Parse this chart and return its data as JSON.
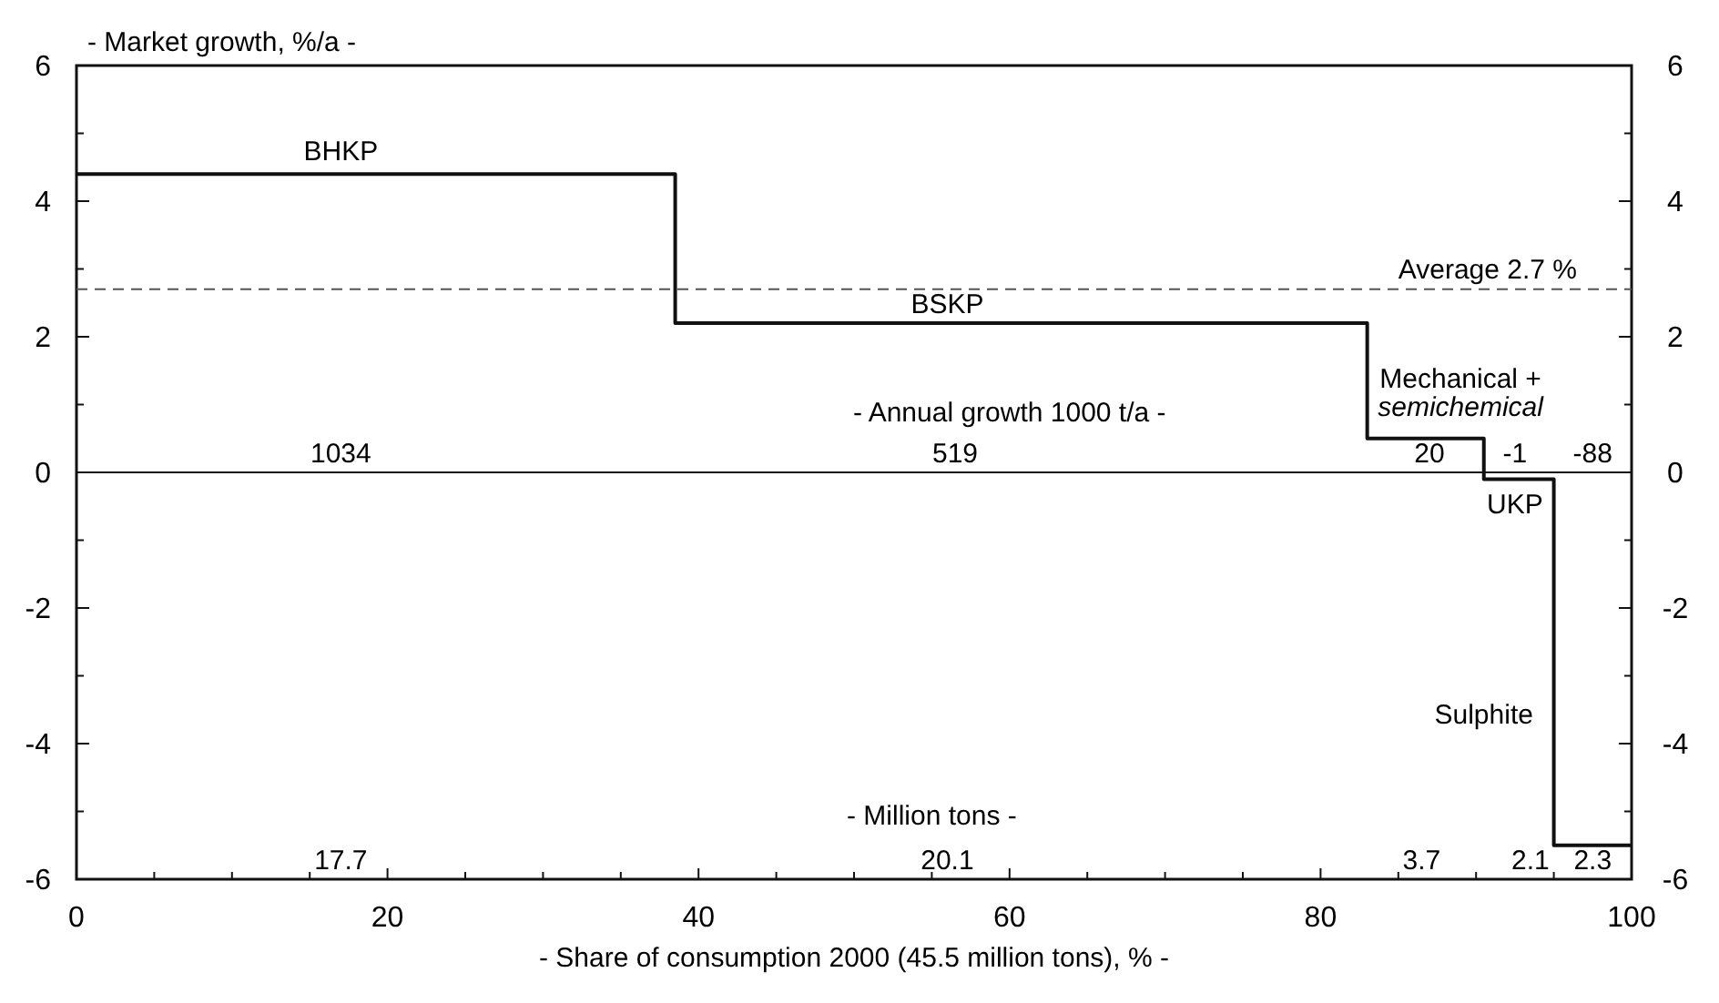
{
  "chart_data": {
    "type": "step",
    "ylabel": "- Market growth, %/a -",
    "xlabel": "- Share of consumption 2000 (45.5 million tons), % -",
    "series": [
      {
        "color": "#111111",
        "x": [
          0,
          38.5,
          83,
          90.5,
          95,
          100
        ],
        "values": [
          4.4,
          2.2,
          0.5,
          -0.1,
          -5.5,
          -5.5
        ]
      }
    ],
    "xlim": [
      0,
      100
    ],
    "xticks": [
      0,
      {
        "value": 5,
        "label": null
      },
      {
        "value": 10,
        "label": null
      },
      {
        "value": 15,
        "label": null
      },
      20,
      {
        "value": 25,
        "label": null
      },
      {
        "value": 30,
        "label": null
      },
      {
        "value": 35,
        "label": null
      },
      40,
      {
        "value": 45,
        "label": null
      },
      {
        "value": 50,
        "label": null
      },
      {
        "value": 55,
        "label": null
      },
      60,
      {
        "value": 65,
        "label": null
      },
      {
        "value": 70,
        "label": null
      },
      {
        "value": 75,
        "label": null
      },
      80,
      {
        "value": 85,
        "label": null
      },
      {
        "value": 90,
        "label": null
      },
      {
        "value": 95,
        "label": null
      },
      100
    ],
    "ylim": [
      -6,
      6
    ],
    "yticks": [
      -6,
      {
        "value": -5,
        "label": null
      },
      -4,
      {
        "value": -3,
        "label": null
      },
      -2,
      {
        "value": -1,
        "label": null
      },
      0,
      {
        "value": 1,
        "label": null
      },
      2,
      {
        "value": 3,
        "label": null
      },
      4,
      {
        "value": 5,
        "label": null
      },
      6
    ],
    "y2lim": [
      -6,
      6
    ],
    "y2ticks": [
      -6,
      {
        "value": -5,
        "label": null
      },
      -4,
      {
        "value": -3,
        "label": null
      },
      -2,
      {
        "value": -1,
        "label": null
      },
      0,
      {
        "value": 1,
        "label": null
      },
      2,
      {
        "value": 3,
        "label": null
      },
      4,
      {
        "value": 5,
        "label": null
      },
      6
    ],
    "ref_lines": [
      {
        "axis": "y",
        "value": 2.7,
        "label": "Average 2.7 %",
        "line_style": "dashed",
        "color": "#555555"
      }
    ],
    "annotations": [
      "BHKP",
      "1034",
      "BSKP",
      "- Annual growth 1000 t/a -",
      "519",
      "Mechanical +\nsemichemical",
      "20",
      "-1",
      "-88",
      "UKP",
      "Sulphite",
      "- Million tons -",
      "17.7",
      "20.1",
      "3.7",
      "2.1",
      "2.3"
    ]
  }
}
